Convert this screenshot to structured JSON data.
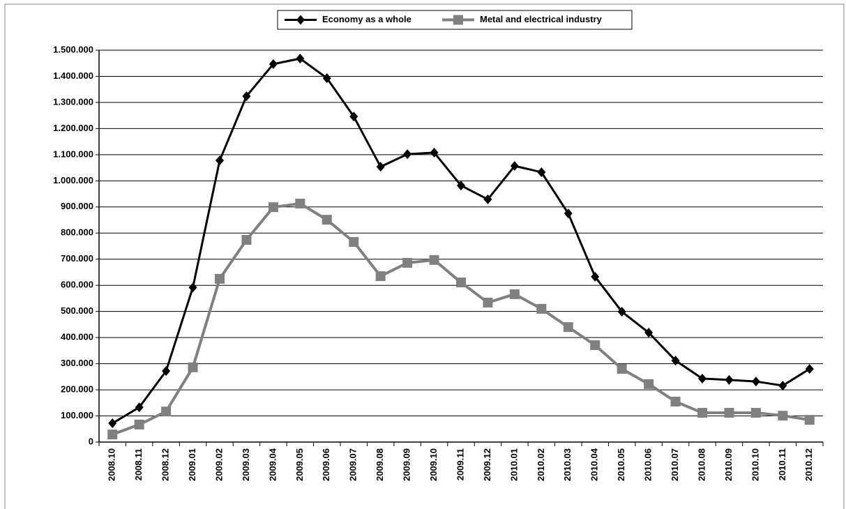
{
  "chart_data": {
    "type": "line",
    "categories": [
      "2008.10",
      "2008.11",
      "2008.12",
      "2009.01",
      "2009.02",
      "2009.03",
      "2009.04",
      "2009.05",
      "2009.06",
      "2009.07",
      "2009.08",
      "2009.09",
      "2009.10",
      "2009.11",
      "2009.12",
      "2010.01",
      "2010.02",
      "2010.03",
      "2010.04",
      "2010.05",
      "2010.06",
      "2010.07",
      "2010.08",
      "2010.09",
      "2010.10",
      "2010.11",
      "2010.12"
    ],
    "series": [
      {
        "name": "Economy as a whole",
        "color": "#000000",
        "marker": "diamond",
        "values": [
          72000,
          133000,
          272000,
          592000,
          1078000,
          1324000,
          1447000,
          1468000,
          1393000,
          1246000,
          1054000,
          1102000,
          1108000,
          982000,
          929000,
          1057000,
          1033000,
          875000,
          633000,
          499000,
          419000,
          312000,
          243000,
          238000,
          232000,
          216000,
          280000
        ]
      },
      {
        "name": "Metal and electrical industry",
        "color": "#808080",
        "marker": "square",
        "values": [
          29000,
          67000,
          117000,
          286000,
          625000,
          774000,
          899000,
          913000,
          851000,
          766000,
          635000,
          686000,
          697000,
          611000,
          534000,
          566000,
          510000,
          440000,
          371000,
          280000,
          222000,
          155000,
          112000,
          112000,
          112000,
          101000,
          85000
        ]
      }
    ],
    "ylim": [
      0,
      1500000
    ],
    "yticks": [
      0,
      {
        "value": 100000,
        "label": "100.000"
      },
      {
        "value": 200000,
        "label": "200.000"
      },
      {
        "value": 300000,
        "label": "300.000"
      },
      {
        "value": 400000,
        "label": "400.000"
      },
      {
        "value": 500000,
        "label": "500.000"
      },
      {
        "value": 600000,
        "label": "600.000"
      },
      {
        "value": 700000,
        "label": "700.000"
      },
      {
        "value": 800000,
        "label": "800.000"
      },
      {
        "value": 900000,
        "label": "900.000"
      },
      {
        "value": 1000000,
        "label": "1.000.000"
      },
      {
        "value": 1100000,
        "label": "1.100.000"
      },
      {
        "value": 1200000,
        "label": "1.200.000"
      },
      {
        "value": 1300000,
        "label": "1.300.000"
      },
      {
        "value": 1400000,
        "label": "1.400.000"
      },
      {
        "value": 1500000,
        "label": "1.500.000"
      }
    ],
    "grid": true,
    "legend": "top"
  }
}
